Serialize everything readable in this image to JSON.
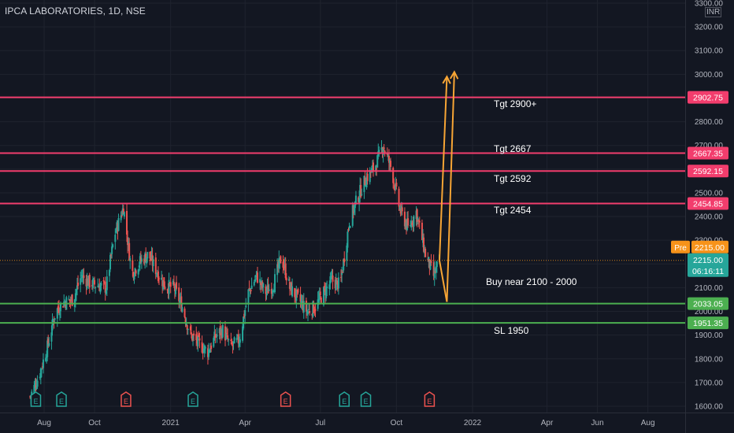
{
  "header": {
    "title": "IPCA LABORATORIES, 1D, NSE",
    "currency": "INR"
  },
  "colors": {
    "background": "#131722",
    "grid": "#1f232e",
    "up_candle": "#26a69a",
    "down_candle": "#ef5350",
    "target_line": "#f23d6d",
    "support_line": "#4caf50",
    "arrow": "#f7a535",
    "premarket_badge": "#f7931a",
    "current_price_badge": "#26a69a"
  },
  "annotations": {
    "tgt_2900": "Tgt 2900+",
    "tgt_2667": "Tgt 2667",
    "tgt_2592": "Tgt 2592",
    "tgt_2454": "Tgt 2454",
    "buy_zone": "Buy near 2100 - 2000",
    "stop_loss": "SL 1950"
  },
  "price_labels": {
    "tgt_2902": "2902.75",
    "tgt_2667": "2667.35",
    "tgt_2592": "2592.15",
    "tgt_2454": "2454.85",
    "premarket_tag": "Pre",
    "premarket_price": "2215.00",
    "last_price": "2215.00",
    "countdown": "06:16:11",
    "support_2033": "2033.05",
    "sl_1951": "1951.35"
  },
  "events": [
    "E",
    "E",
    "E",
    "E",
    "E",
    "E",
    "E",
    "E"
  ],
  "chart_data": {
    "type": "candlestick",
    "title": "IPCA LABORATORIES, 1D, NSE",
    "y_unit": "INR",
    "ylim": [
      1580,
      3310
    ],
    "y_ticks": [
      1600,
      1700,
      1800,
      1900,
      2000,
      2100,
      2200,
      2300,
      2400,
      2500,
      2600,
      2700,
      2800,
      2900,
      3000,
      3100,
      3200,
      3300
    ],
    "x_tick_labels": [
      "Aug",
      "Oct",
      "2021",
      "Apr",
      "Jul",
      "Oct",
      "2022",
      "Apr",
      "Jun",
      "Aug"
    ],
    "grid": true,
    "price_trend_close": [
      [
        "2020-07-15",
        1640
      ],
      [
        "2020-07-25",
        1720
      ],
      [
        "2020-08-05",
        1850
      ],
      [
        "2020-08-15",
        2000
      ],
      [
        "2020-08-25",
        2040
      ],
      [
        "2020-09-05",
        2050
      ],
      [
        "2020-09-15",
        2150
      ],
      [
        "2020-09-25",
        2120
      ],
      [
        "2020-10-05",
        2110
      ],
      [
        "2020-10-15",
        2100
      ],
      [
        "2020-10-25",
        2320
      ],
      [
        "2020-11-05",
        2440
      ],
      [
        "2020-11-15",
        2160
      ],
      [
        "2020-11-25",
        2210
      ],
      [
        "2020-12-05",
        2240
      ],
      [
        "2020-12-15",
        2170
      ],
      [
        "2020-12-25",
        2110
      ],
      [
        "2021-01-05",
        2100
      ],
      [
        "2021-01-15",
        2020
      ],
      [
        "2021-01-25",
        1900
      ],
      [
        "2021-02-05",
        1860
      ],
      [
        "2021-02-15",
        1830
      ],
      [
        "2021-02-25",
        1900
      ],
      [
        "2021-03-05",
        1920
      ],
      [
        "2021-03-15",
        1850
      ],
      [
        "2021-03-25",
        1880
      ],
      [
        "2021-04-05",
        2080
      ],
      [
        "2021-04-15",
        2150
      ],
      [
        "2021-04-25",
        2080
      ],
      [
        "2021-05-05",
        2110
      ],
      [
        "2021-05-15",
        2230
      ],
      [
        "2021-05-25",
        2100
      ],
      [
        "2021-06-05",
        2050
      ],
      [
        "2021-06-15",
        2000
      ],
      [
        "2021-06-25",
        2020
      ],
      [
        "2021-07-05",
        2080
      ],
      [
        "2021-07-15",
        2130
      ],
      [
        "2021-07-25",
        2110
      ],
      [
        "2021-08-05",
        2380
      ],
      [
        "2021-08-15",
        2480
      ],
      [
        "2021-08-25",
        2560
      ],
      [
        "2021-09-05",
        2610
      ],
      [
        "2021-09-15",
        2700
      ],
      [
        "2021-09-25",
        2600
      ],
      [
        "2021-10-05",
        2430
      ],
      [
        "2021-10-15",
        2350
      ],
      [
        "2021-10-25",
        2420
      ],
      [
        "2021-11-05",
        2240
      ],
      [
        "2021-11-15",
        2150
      ],
      [
        "2021-11-22",
        2215
      ]
    ],
    "horizontal_levels": [
      {
        "label": "Tgt 2900+",
        "value": 2902.75,
        "kind": "target"
      },
      {
        "label": "Tgt 2667",
        "value": 2667.35,
        "kind": "target"
      },
      {
        "label": "Tgt 2592",
        "value": 2592.15,
        "kind": "target"
      },
      {
        "label": "Tgt 2454",
        "value": 2454.85,
        "kind": "target"
      },
      {
        "label": "Buy near 2100 - 2000",
        "value": 2033.05,
        "kind": "support"
      },
      {
        "label": "SL 1950",
        "value": 1951.35,
        "kind": "stop"
      }
    ],
    "last_price": 2215.0,
    "projection_arrows": [
      {
        "from": [
          "2021-11-22",
          2215
        ],
        "to": [
          "2021-12-01",
          2990
        ]
      },
      {
        "from": [
          "2021-12-01",
          2040
        ],
        "to": [
          "2021-12-10",
          3010
        ]
      }
    ]
  }
}
